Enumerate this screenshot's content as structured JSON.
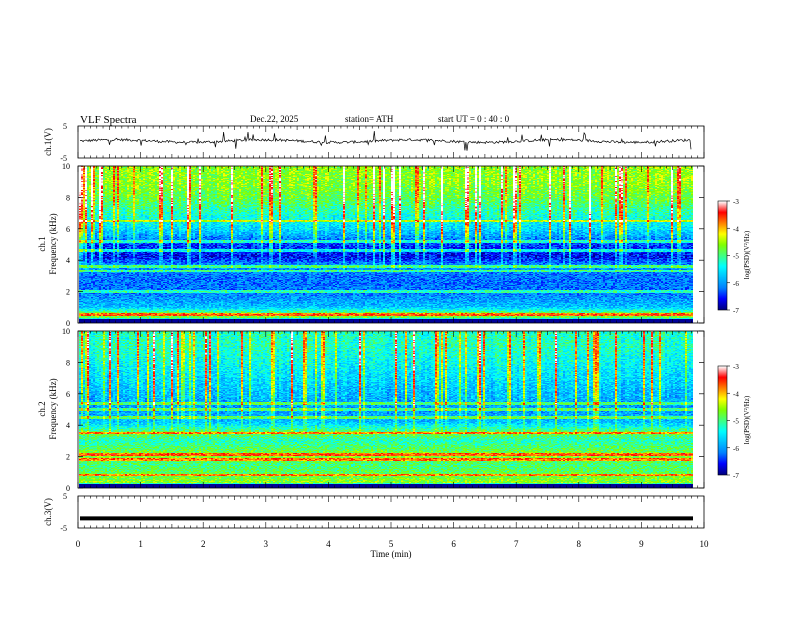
{
  "header": {
    "title": "VLF  Spectra",
    "date": "Dec.22, 2025",
    "station": "station= ATH",
    "start_ut": "start  UT  =    0 : 40 : 0"
  },
  "colors": {
    "colormap": [
      "#000080",
      "#0000ff",
      "#0080ff",
      "#00c0ff",
      "#00ffff",
      "#40ff80",
      "#80ff00",
      "#ffff00",
      "#ff8000",
      "#ff0000",
      "#ffffff"
    ],
    "trace": "#000000"
  },
  "chart_data": [
    {
      "type": "line",
      "name": "ch.1 waveform",
      "ylabel": "ch.1(V)",
      "ylim": [
        -5,
        5
      ],
      "yticks": [
        "5",
        "-5"
      ],
      "xlim": [
        0,
        10
      ],
      "baseline": 0.3,
      "noise_amplitude": 0.8
    },
    {
      "type": "heatmap",
      "name": "ch.1 spectrogram",
      "ylabel_channel": "ch.1",
      "ylabel": "Frequency (kHz)",
      "ylim": [
        0,
        10
      ],
      "yticks": [
        "0",
        "2",
        "4",
        "6",
        "8",
        "10"
      ],
      "xlim": [
        0,
        9.8
      ],
      "bands": [
        {
          "f": 0.1,
          "level": 0.0
        },
        {
          "f": 0.3,
          "level": 0.55
        },
        {
          "f": 0.5,
          "level": 0.6
        },
        {
          "f": 1.0,
          "level": 0.3
        },
        {
          "f": 1.5,
          "level": 0.25
        },
        {
          "f": 2.0,
          "level": 0.2
        },
        {
          "f": 3.0,
          "level": 0.2
        },
        {
          "f": 3.6,
          "level": 0.25
        },
        {
          "f": 4.2,
          "level": 0.1
        },
        {
          "f": 5.0,
          "level": 0.15
        },
        {
          "f": 6.0,
          "level": 0.35
        },
        {
          "f": 7.0,
          "level": 0.45
        },
        {
          "f": 8.0,
          "level": 0.55
        },
        {
          "f": 9.0,
          "level": 0.6
        },
        {
          "f": 10.0,
          "level": 0.6
        }
      ],
      "lines_khz": [
        0.5,
        2.0,
        3.3,
        3.6,
        4.6,
        5.2,
        6.5
      ],
      "colorbar": {
        "label": "log(PSD)(V²/Hz)",
        "ticks": [
          "-3",
          "-4",
          "-5",
          "-6",
          "-7"
        ],
        "range": [
          -7,
          -3
        ]
      }
    },
    {
      "type": "heatmap",
      "name": "ch.2 spectrogram",
      "ylabel_channel": "ch.2",
      "ylabel": "Frequency (kHz)",
      "ylim": [
        0,
        10
      ],
      "yticks": [
        "0",
        "2",
        "4",
        "6",
        "8",
        "10"
      ],
      "xlim": [
        0,
        9.8
      ],
      "bands": [
        {
          "f": 0.1,
          "level": 0.0
        },
        {
          "f": 0.3,
          "level": 0.6
        },
        {
          "f": 0.8,
          "level": 0.55
        },
        {
          "f": 1.5,
          "level": 0.5
        },
        {
          "f": 2.0,
          "level": 0.6
        },
        {
          "f": 3.0,
          "level": 0.45
        },
        {
          "f": 3.5,
          "level": 0.55
        },
        {
          "f": 4.2,
          "level": 0.3
        },
        {
          "f": 5.0,
          "level": 0.25
        },
        {
          "f": 6.0,
          "level": 0.3
        },
        {
          "f": 7.0,
          "level": 0.35
        },
        {
          "f": 8.0,
          "level": 0.4
        },
        {
          "f": 9.0,
          "level": 0.45
        },
        {
          "f": 10.0,
          "level": 0.45
        }
      ],
      "lines_khz": [
        0.8,
        1.8,
        2.1,
        3.5,
        4.5,
        5.0,
        5.4
      ],
      "colorbar": {
        "label": "log(PSD)(V²/Hz)",
        "ticks": [
          "-3",
          "-4",
          "-5",
          "-6",
          "-7"
        ],
        "range": [
          -7,
          -3
        ]
      }
    },
    {
      "type": "line",
      "name": "ch.3 waveform",
      "ylabel": "ch.3(V)",
      "ylim": [
        -5,
        5
      ],
      "yticks": [
        "5",
        "-5"
      ],
      "xlim": [
        0,
        10
      ],
      "baseline": -2.0,
      "noise_amplitude": 0.0
    }
  ],
  "xaxis": {
    "label": "Time  (min)",
    "ticks": [
      "0",
      "1",
      "2",
      "3",
      "4",
      "5",
      "6",
      "7",
      "8",
      "9",
      "10"
    ],
    "range": [
      0,
      10
    ]
  }
}
